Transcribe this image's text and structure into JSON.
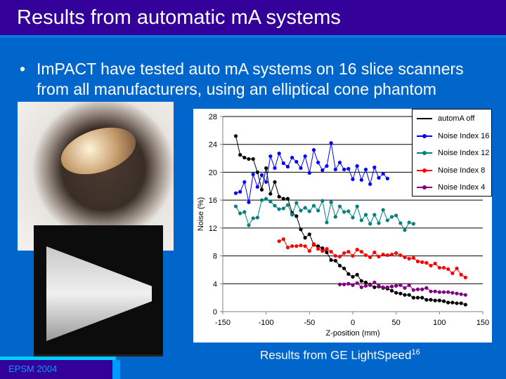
{
  "slide": {
    "title": "Results from automatic mA systems",
    "bullet": "ImPACT have tested auto mA systems on 16 slice scanners from all manufacturers, using an elliptical cone phantom",
    "caption": "Results from GE LightSpeed",
    "caption_sup": "16",
    "footer": "EPSM 2004",
    "bullet_glyph": "•"
  },
  "colors": {
    "title_bg": "#330099",
    "slide_bg": "#0066cc"
  },
  "chart_data": {
    "type": "line",
    "xlabel": "Z-position (mm)",
    "ylabel": "Noise (%)",
    "xlim": [
      -150,
      150
    ],
    "ylim": [
      0,
      28
    ],
    "xticks": [
      -150,
      -100,
      -50,
      0,
      50,
      100,
      150
    ],
    "yticks": [
      0,
      4,
      8,
      12,
      16,
      20,
      24,
      28
    ],
    "grid": "horizontal",
    "legend": "top-right",
    "series": [
      {
        "name": "automA off",
        "color": "#000000",
        "x0": -135,
        "step": 5,
        "values": [
          25.2,
          22.5,
          22.1,
          21.9,
          21.9,
          20,
          17.5,
          20.6,
          16.9,
          18.6,
          16.5,
          16.2,
          16.2,
          14.2,
          13.7,
          11.8,
          10.6,
          11.1,
          9.6,
          9.4,
          9.1,
          8.5,
          7.4,
          7.3,
          6.6,
          6.2,
          5.4,
          5.0,
          5.3,
          4.4,
          4.2,
          3.9,
          3.5,
          3.6,
          3.4,
          3.3,
          3.0,
          2.7,
          2.6,
          2.4,
          2.4,
          2.0,
          2.0,
          2.0,
          1.7,
          1.7,
          1.6,
          1.6,
          1.5,
          1.3,
          1.3,
          1.2,
          1.2,
          1.0
        ]
      },
      {
        "name": "Noise Index 16",
        "color": "#0000ff",
        "x0": -135,
        "step": 5,
        "values": [
          17.0,
          17.2,
          18.6,
          15.7,
          19.7,
          17.9,
          19.6,
          18.6,
          22.3,
          20.6,
          22.7,
          21.3,
          20.8,
          22.1,
          21.5,
          20.6,
          22.3,
          19.9,
          23.2,
          21.4,
          20.3,
          20.9,
          24.2,
          20.4,
          21.4,
          20.4,
          20.5,
          19.0,
          20.9,
          18.9,
          20.4,
          18.3,
          20.7,
          19.2,
          19.8,
          19.1
        ]
      },
      {
        "name": "Noise Index 12",
        "color": "#008080",
        "x0": -135,
        "step": 5,
        "values": [
          15.1,
          14.1,
          14.3,
          12.4,
          13.4,
          13.5,
          16.0,
          16.2,
          15.8,
          15.2,
          14.7,
          14.8,
          15.3,
          13.9,
          15.6,
          14.5,
          14.9,
          14.4,
          15.2,
          14.5,
          15.9,
          12.8,
          15.7,
          13.6,
          15.1,
          14.3,
          14.4,
          13.5,
          15.1,
          13.1,
          13.9,
          12.6,
          13.9,
          12.7,
          14.6,
          13.1,
          13.6,
          13.8,
          12.7,
          11.7,
          12.8,
          12.6
        ]
      },
      {
        "name": "Noise Index 8",
        "color": "#ff0000",
        "x0": -85,
        "step": 5,
        "values": [
          10.1,
          10.4,
          9.2,
          9.4,
          9.4,
          9.5,
          9.4,
          8.7,
          9.7,
          9.0,
          8.7,
          9.0,
          8.6,
          8.0,
          7.9,
          8.4,
          8.6,
          8.0,
          8.9,
          8.6,
          8.1,
          7.8,
          8.5,
          7.9,
          8.2,
          8.1,
          8.2,
          8.4,
          8.1,
          7.8,
          7.6,
          7.7,
          7.2,
          7.1,
          7.0,
          6.6,
          6.9,
          6.3,
          6.3,
          6.1,
          5.5,
          6.2,
          5.3,
          4.9
        ]
      },
      {
        "name": "Noise Index 4",
        "color": "#800080",
        "x0": -15,
        "step": 5,
        "values": [
          3.9,
          3.9,
          4.0,
          3.8,
          4.1,
          3.5,
          3.7,
          3.8,
          4.2,
          3.7,
          3.5,
          3.5,
          3.6,
          3.7,
          3.8,
          3.4,
          3.8,
          3.1,
          3.2,
          3.2,
          3.4,
          2.9,
          2.9,
          2.8,
          2.8,
          2.8,
          2.7,
          2.6,
          2.5,
          2.4
        ]
      }
    ]
  }
}
